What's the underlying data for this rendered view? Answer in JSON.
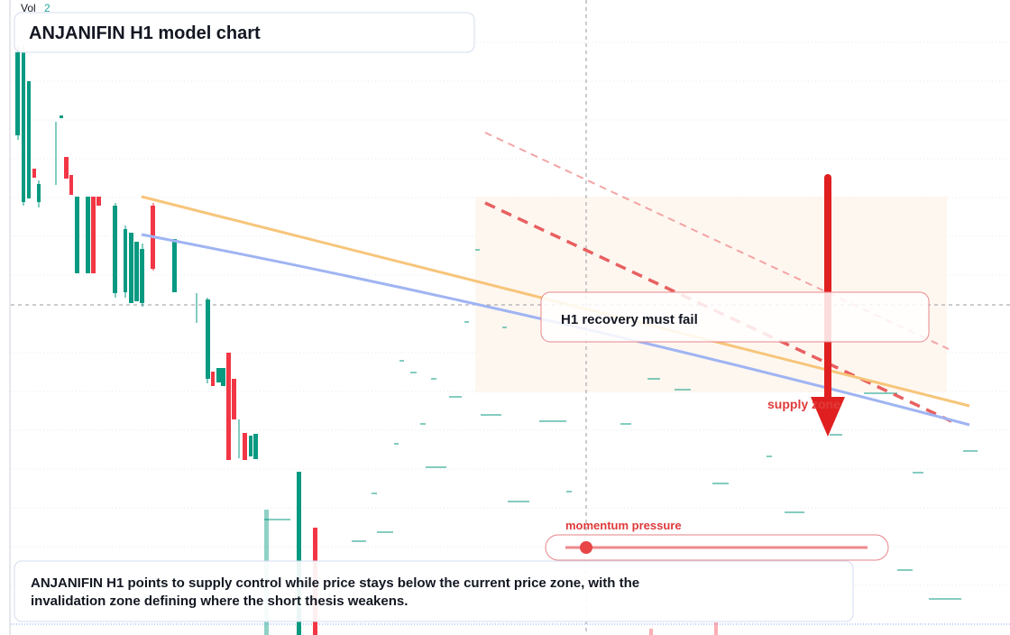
{
  "header": {
    "vol_label": "Vol",
    "vol_value": "2",
    "title": "ANJANIFIN H1 model chart"
  },
  "annotations": {
    "box": "H1 recovery must fail",
    "zone": "supply zone",
    "gauge": "momentum pressure"
  },
  "footer": {
    "text": "ANJANIFIN H1 points to supply control while price stays below the current price zone, with the invalidation zone defining where the short thesis weakens."
  }
}
